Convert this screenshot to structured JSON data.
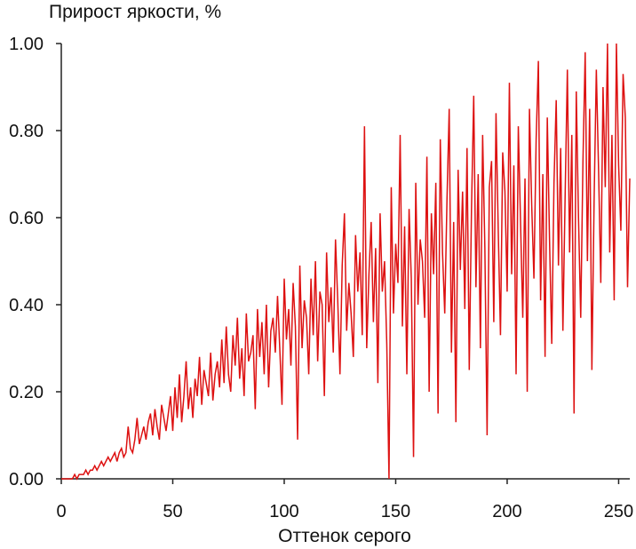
{
  "chart_data": {
    "type": "line",
    "title": "",
    "ylabel": "Прирост яркости, %",
    "xlabel": "Оттенок серого",
    "xlim": [
      0,
      255
    ],
    "ylim": [
      0,
      1.0
    ],
    "x_ticks": [
      0,
      50,
      100,
      150,
      200,
      250
    ],
    "x_tick_labels": [
      "0",
      "50",
      "100",
      "150",
      "200",
      "250"
    ],
    "y_ticks": [
      0,
      0.2,
      0.4,
      0.6,
      0.8,
      1.0
    ],
    "y_tick_labels": [
      "0.00",
      "0.20",
      "0.40",
      "0.60",
      "0.80",
      "1.00"
    ],
    "grid": false,
    "series": [
      {
        "color": "#dd1111",
        "x_start": 0,
        "x_step": 1,
        "values": [
          0.0,
          0.0,
          0.0,
          0.0,
          0.0,
          0.0,
          0.01,
          0.0,
          0.01,
          0.01,
          0.01,
          0.02,
          0.01,
          0.02,
          0.02,
          0.03,
          0.02,
          0.03,
          0.04,
          0.03,
          0.04,
          0.05,
          0.04,
          0.05,
          0.06,
          0.04,
          0.06,
          0.07,
          0.05,
          0.06,
          0.12,
          0.07,
          0.06,
          0.09,
          0.14,
          0.08,
          0.1,
          0.12,
          0.09,
          0.13,
          0.15,
          0.1,
          0.16,
          0.12,
          0.09,
          0.17,
          0.14,
          0.11,
          0.15,
          0.19,
          0.11,
          0.21,
          0.14,
          0.24,
          0.13,
          0.19,
          0.27,
          0.16,
          0.21,
          0.14,
          0.23,
          0.19,
          0.28,
          0.17,
          0.25,
          0.22,
          0.19,
          0.29,
          0.18,
          0.24,
          0.27,
          0.21,
          0.32,
          0.22,
          0.35,
          0.24,
          0.2,
          0.33,
          0.26,
          0.37,
          0.23,
          0.3,
          0.19,
          0.38,
          0.27,
          0.29,
          0.33,
          0.16,
          0.39,
          0.28,
          0.36,
          0.24,
          0.4,
          0.21,
          0.34,
          0.37,
          0.29,
          0.42,
          0.3,
          0.17,
          0.46,
          0.32,
          0.39,
          0.26,
          0.45,
          0.35,
          0.09,
          0.49,
          0.3,
          0.41,
          0.37,
          0.24,
          0.46,
          0.33,
          0.5,
          0.27,
          0.43,
          0.4,
          0.19,
          0.52,
          0.36,
          0.44,
          0.29,
          0.55,
          0.41,
          0.24,
          0.49,
          0.61,
          0.34,
          0.45,
          0.38,
          0.28,
          0.56,
          0.43,
          0.52,
          0.33,
          0.81,
          0.3,
          0.47,
          0.59,
          0.36,
          0.53,
          0.22,
          0.61,
          0.43,
          0.5,
          0.31,
          0.0,
          0.67,
          0.38,
          0.54,
          0.45,
          0.79,
          0.35,
          0.58,
          0.24,
          0.62,
          0.46,
          0.05,
          0.68,
          0.4,
          0.55,
          0.5,
          0.37,
          0.74,
          0.2,
          0.61,
          0.47,
          0.68,
          0.15,
          0.78,
          0.52,
          0.38,
          0.64,
          0.85,
          0.29,
          0.59,
          0.13,
          0.71,
          0.48,
          0.66,
          0.39,
          0.76,
          0.25,
          0.62,
          0.88,
          0.44,
          0.7,
          0.3,
          0.79,
          0.53,
          0.1,
          0.67,
          0.73,
          0.36,
          0.84,
          0.57,
          0.33,
          0.75,
          0.66,
          0.43,
          0.91,
          0.47,
          0.72,
          0.24,
          0.81,
          0.59,
          0.37,
          0.69,
          0.2,
          0.85,
          0.63,
          0.46,
          0.78,
          0.96,
          0.41,
          0.7,
          0.28,
          0.83,
          0.55,
          0.31,
          0.68,
          0.87,
          0.49,
          0.76,
          0.34,
          0.65,
          0.94,
          0.52,
          0.79,
          0.15,
          0.89,
          0.6,
          0.37,
          0.73,
          0.98,
          0.5,
          0.85,
          0.25,
          0.64,
          0.94,
          0.71,
          0.45,
          0.9,
          0.67,
          1.0,
          0.52,
          0.79,
          0.41,
          1.0,
          0.72,
          0.57,
          0.93,
          0.83,
          0.44,
          0.69
        ]
      }
    ]
  }
}
